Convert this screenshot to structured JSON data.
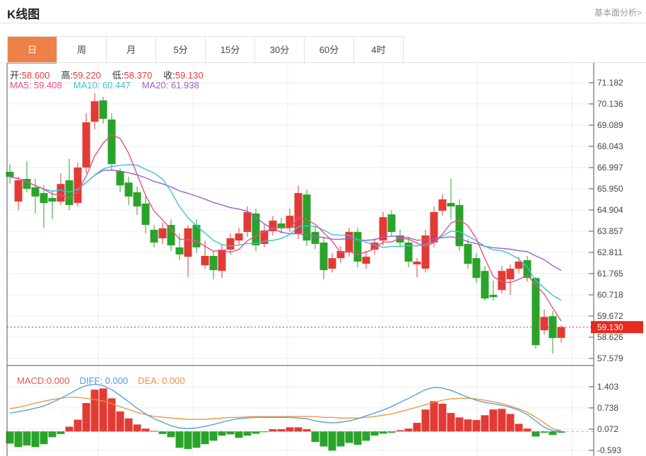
{
  "header": {
    "title": "K线图",
    "link": "基本面分析>"
  },
  "tabs": {
    "items": [
      "日",
      "周",
      "月",
      "5分",
      "15分",
      "30分",
      "60分",
      "4时"
    ],
    "active_index": 0
  },
  "ohlc": {
    "open_label": "开:",
    "open": "58.600",
    "high_label": "高:",
    "high": "59.220",
    "low_label": "低:",
    "low": "58.370",
    "close_label": "收:",
    "close": "59.130"
  },
  "ma_header": {
    "ma5_label": "MA5:",
    "ma5": "59.408",
    "ma10_label": "MA10:",
    "ma10": "60.447",
    "ma20_label": "MA20:",
    "ma20": "61.938"
  },
  "macd_header": {
    "macd_label": "MACD:",
    "macd": "0.000",
    "diff_label": "DIFF:",
    "diff": "0.000",
    "dea_label": "DEA:",
    "dea": "0.000"
  },
  "colors": {
    "up": "#e23b35",
    "down": "#2aa32a",
    "ma5": "#ee4f82",
    "ma10": "#3ec2d2",
    "ma20": "#9a60ce",
    "diff": "#4f9bdb",
    "dea": "#ef9234",
    "tab_active": "#ee8147",
    "price_line": "#e42a20",
    "badge_bg": "#e8291d",
    "badge_text": "#ffffff",
    "grid": "#ececec",
    "axis": "#555555",
    "tick_text": "#444444",
    "macd_zero_dash": "#9cc3e6",
    "ohlc_value": "#e43b35",
    "macd_label": "#e05a52"
  },
  "chart_data": {
    "type": "candlestick",
    "title": "K线图 daily candles with MA5/MA10/MA20 and MACD",
    "price_panel": {
      "y_ticks": [
        "71.182",
        "70.136",
        "69.089",
        "68.043",
        "66.997",
        "65.950",
        "64.904",
        "63.857",
        "62.811",
        "61.765",
        "60.718",
        "59.672",
        "58.626",
        "57.579"
      ],
      "ylim": [
        57.579,
        71.182
      ],
      "current_price": 59.13,
      "current_price_label": "59.130",
      "ma_periods": [
        5,
        10,
        20
      ],
      "candles_ochl": [
        [
          66.79,
          66.54,
          67.17,
          66.19
        ],
        [
          65.32,
          66.37,
          66.54,
          64.9
        ],
        [
          66.44,
          65.95,
          67.31,
          65.78
        ],
        [
          66.02,
          65.57,
          66.44,
          64.73
        ],
        [
          65.74,
          65.25,
          66.12,
          64.03
        ],
        [
          65.5,
          65.32,
          65.85,
          64.45
        ],
        [
          65.32,
          66.19,
          66.72,
          65.15
        ],
        [
          66.37,
          65.15,
          67.42,
          64.9
        ],
        [
          65.25,
          67.0,
          67.24,
          65.08
        ],
        [
          67.0,
          69.23,
          69.68,
          66.72
        ],
        [
          69.26,
          70.27,
          70.66,
          68.88
        ],
        [
          70.31,
          69.4,
          70.48,
          69.16
        ],
        [
          69.37,
          67.17,
          69.68,
          66.89
        ],
        [
          66.82,
          66.12,
          66.96,
          65.78
        ],
        [
          66.26,
          65.57,
          66.54,
          65.15
        ],
        [
          65.78,
          65.08,
          66.06,
          64.66
        ],
        [
          65.22,
          64.17,
          65.57,
          63.75
        ],
        [
          63.93,
          63.3,
          64.17,
          63.06
        ],
        [
          63.51,
          64.0,
          64.28,
          63.23
        ],
        [
          64.17,
          63.16,
          64.45,
          62.88
        ],
        [
          63.06,
          62.71,
          63.75,
          62.43
        ],
        [
          62.6,
          64.0,
          64.17,
          61.59
        ],
        [
          64.17,
          63.06,
          64.45,
          62.78
        ],
        [
          62.18,
          62.64,
          63.4,
          62.01
        ],
        [
          62.64,
          61.94,
          62.88,
          61.49
        ],
        [
          61.9,
          62.95,
          63.23,
          61.56
        ],
        [
          62.95,
          63.51,
          63.75,
          62.71
        ],
        [
          63.4,
          63.75,
          64.03,
          63.16
        ],
        [
          63.82,
          64.8,
          65.08,
          63.58
        ],
        [
          64.73,
          63.16,
          64.97,
          62.88
        ],
        [
          63.23,
          63.89,
          64.17,
          63.06
        ],
        [
          63.86,
          64.38,
          64.62,
          63.65
        ],
        [
          64.24,
          64.0,
          64.52,
          63.75
        ],
        [
          64.03,
          64.62,
          64.97,
          63.82
        ],
        [
          63.75,
          65.74,
          66.12,
          63.47
        ],
        [
          65.67,
          63.4,
          65.91,
          63.12
        ],
        [
          63.82,
          63.23,
          64.1,
          62.98
        ],
        [
          63.3,
          61.94,
          63.58,
          61.49
        ],
        [
          62.01,
          62.53,
          62.78,
          61.83
        ],
        [
          62.53,
          62.88,
          63.12,
          62.29
        ],
        [
          62.81,
          63.82,
          64.03,
          62.6
        ],
        [
          63.82,
          62.36,
          64.03,
          62.08
        ],
        [
          62.25,
          62.6,
          62.88,
          62.01
        ],
        [
          62.95,
          63.3,
          63.51,
          62.71
        ],
        [
          63.4,
          64.55,
          64.8,
          63.16
        ],
        [
          64.69,
          63.82,
          64.9,
          63.58
        ],
        [
          63.65,
          63.3,
          63.93,
          63.06
        ],
        [
          63.3,
          62.36,
          63.58,
          62.08
        ],
        [
          62.22,
          62.36,
          62.53,
          61.59
        ],
        [
          62.01,
          63.65,
          63.93,
          61.83
        ],
        [
          63.3,
          64.8,
          65.08,
          63.06
        ],
        [
          64.87,
          65.43,
          65.67,
          64.62
        ],
        [
          65.25,
          65.08,
          66.44,
          64.45
        ],
        [
          65.15,
          63.12,
          65.43,
          62.88
        ],
        [
          63.23,
          62.25,
          63.47,
          62.01
        ],
        [
          62.53,
          61.55,
          62.78,
          61.31
        ],
        [
          61.9,
          60.54,
          62.15,
          60.44
        ],
        [
          60.72,
          60.61,
          61.42,
          60.44
        ],
        [
          60.96,
          61.9,
          62.15,
          60.79
        ],
        [
          61.49,
          62.01,
          62.22,
          60.72
        ],
        [
          62.01,
          62.36,
          62.6,
          61.8
        ],
        [
          62.43,
          61.55,
          62.64,
          61.38
        ],
        [
          61.55,
          58.24,
          61.59,
          58.07
        ],
        [
          58.97,
          59.63,
          60.01,
          58.76
        ],
        [
          59.67,
          58.59,
          59.92,
          57.83
        ],
        [
          58.6,
          59.13,
          59.22,
          58.37
        ]
      ]
    },
    "macd_panel": {
      "y_ticks": [
        "1.403",
        "0.738",
        "0.072",
        "-0.593"
      ],
      "ylim": [
        -0.593,
        1.403
      ],
      "hist": [
        -0.38,
        -0.49,
        -0.44,
        -0.49,
        -0.4,
        -0.18,
        -0.08,
        0.15,
        0.37,
        0.89,
        1.31,
        1.35,
        1.04,
        0.63,
        0.41,
        0.22,
        0.09,
        0.02,
        -0.08,
        -0.18,
        -0.51,
        -0.55,
        -0.51,
        -0.4,
        -0.29,
        -0.13,
        -0.09,
        -0.2,
        -0.13,
        -0.07,
        -0.02,
        0.07,
        0.07,
        0.13,
        0.13,
        0.07,
        -0.33,
        -0.47,
        -0.6,
        -0.47,
        -0.36,
        -0.42,
        -0.29,
        -0.13,
        -0.07,
        -0.04,
        0.04,
        0.09,
        0.27,
        0.69,
        0.95,
        0.87,
        0.58,
        0.44,
        0.38,
        0.36,
        0.51,
        0.69,
        0.71,
        0.55,
        0.24,
        0.09,
        -0.16,
        -0.04,
        -0.11,
        -0.04
      ],
      "diff": [
        0.58,
        0.62,
        0.67,
        0.73,
        0.8,
        0.91,
        1.04,
        1.18,
        1.33,
        1.44,
        1.48,
        1.44,
        1.31,
        1.13,
        0.93,
        0.73,
        0.55,
        0.4,
        0.29,
        0.18,
        0.11,
        0.09,
        0.11,
        0.16,
        0.22,
        0.29,
        0.36,
        0.4,
        0.42,
        0.44,
        0.44,
        0.44,
        0.44,
        0.44,
        0.42,
        0.4,
        0.33,
        0.29,
        0.27,
        0.29,
        0.33,
        0.4,
        0.49,
        0.58,
        0.67,
        0.78,
        0.91,
        1.04,
        1.18,
        1.31,
        1.38,
        1.36,
        1.29,
        1.18,
        1.07,
        0.98,
        0.91,
        0.87,
        0.82,
        0.76,
        0.67,
        0.53,
        0.33,
        0.13,
        0.02,
        0.02
      ],
      "dea": [
        0.71,
        0.76,
        0.82,
        0.89,
        0.95,
        1.0,
        1.04,
        1.07,
        1.07,
        1.04,
        1.0,
        0.95,
        0.87,
        0.78,
        0.69,
        0.6,
        0.53,
        0.47,
        0.45,
        0.42,
        0.4,
        0.38,
        0.38,
        0.38,
        0.4,
        0.42,
        0.44,
        0.44,
        0.46,
        0.47,
        0.47,
        0.47,
        0.47,
        0.47,
        0.47,
        0.47,
        0.47,
        0.44,
        0.44,
        0.42,
        0.42,
        0.42,
        0.44,
        0.47,
        0.51,
        0.55,
        0.62,
        0.69,
        0.76,
        0.84,
        0.91,
        0.98,
        1.02,
        1.04,
        1.04,
        1.02,
        0.98,
        0.93,
        0.87,
        0.8,
        0.71,
        0.6,
        0.44,
        0.27,
        0.09,
        0.02
      ]
    }
  }
}
